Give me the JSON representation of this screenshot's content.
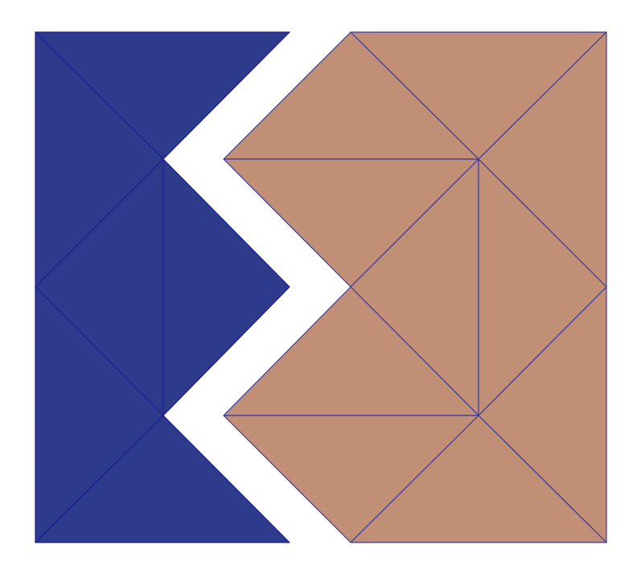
{
  "diagram": {
    "kind": "triangle tiling puzzle",
    "pieces": [
      {
        "name": "blue-piece",
        "color": "#2e3a8c",
        "stroke": "#1f1f8a"
      },
      {
        "name": "tan-piece",
        "color": "#c18f76",
        "stroke": "#3a3aa0"
      }
    ],
    "background": "#ffffff"
  }
}
